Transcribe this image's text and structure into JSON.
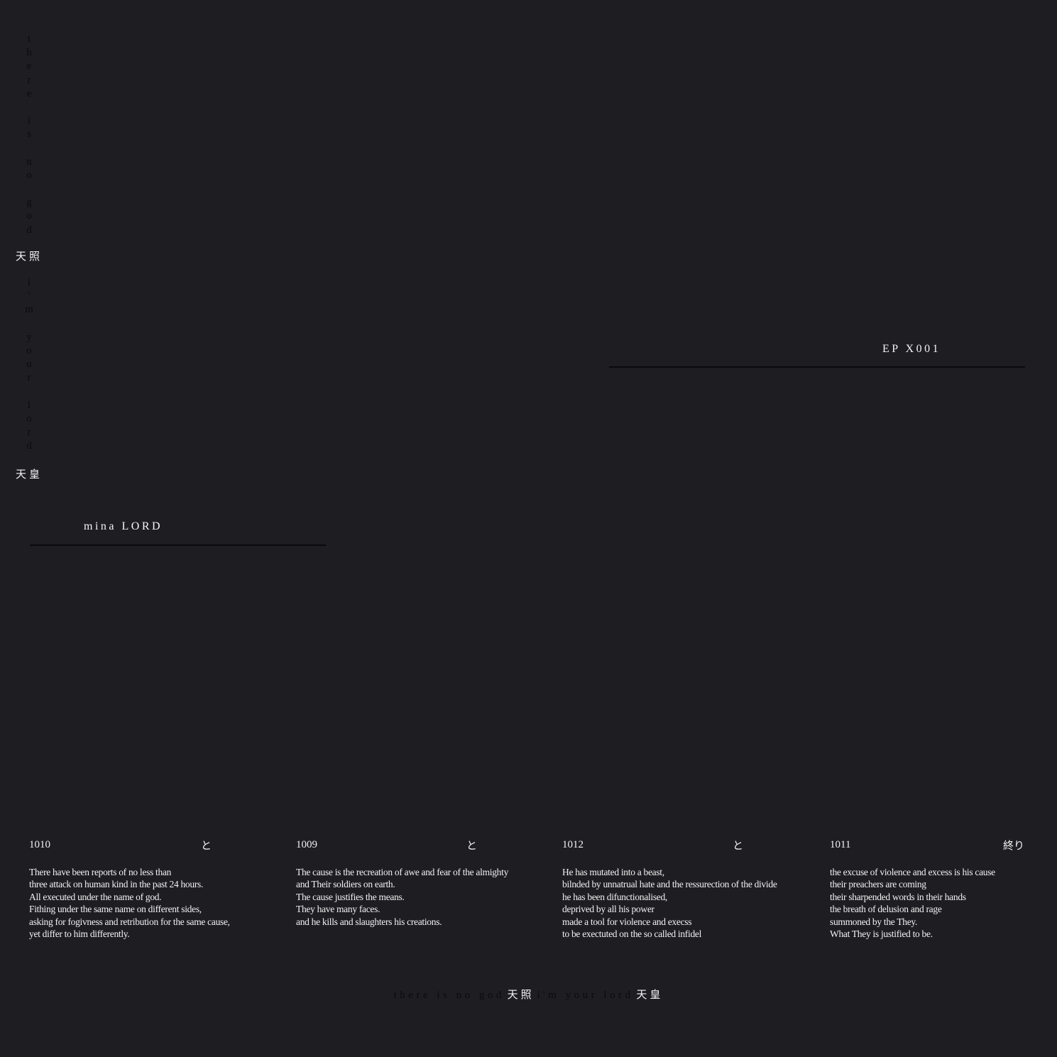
{
  "vertical": {
    "line1": "there is no god",
    "kanji1": "天照",
    "line2": "i'm your lord",
    "kanji2": "天皇"
  },
  "artist": "mina LORD",
  "release": "EP X001",
  "tracks": [
    {
      "number": "1010",
      "mark": "と",
      "lines": [
        "There have been reports of no less than",
        "three attack on human kind in the past 24 hours.",
        "All executed under the name of god.",
        "Fithing under the same name on different sides,",
        "asking for fogivness and retribution for the same cause,",
        "yet differ to him differently."
      ]
    },
    {
      "number": "1009",
      "mark": "と",
      "lines": [
        "The cause is the recreation of awe and fear of the almighty",
        "and Their soldiers on earth.",
        "The cause justifies the means.",
        "They have many faces.",
        "and he kills and slaughters his creations."
      ]
    },
    {
      "number": "1012",
      "mark": "と",
      "lines": [
        "He has mutated into a beast,",
        "bilnded by unnatrual hate and the ressurection of the divide",
        "he has been difunctionalised,",
        "deprived by all his power",
        "made a tool for violence and execss",
        "to be exectuted on the so called infidel"
      ]
    },
    {
      "number": "1011",
      "mark": "終り",
      "lines": [
        "the excuse of violence and excess is his cause",
        "their preachers are coming",
        "their sharpended words in their hands",
        "the breath of delusion and rage",
        "summoned by the They.",
        "What They is justified to be."
      ]
    }
  ],
  "footer": {
    "text1": "there is no god",
    "kanji1": "天照",
    "text2": "i'm your lord",
    "kanji2": "天皇"
  },
  "colors": {
    "background": "#1e1d22",
    "text": "#f4f4f4",
    "dark_text": "#0b0b0d"
  }
}
